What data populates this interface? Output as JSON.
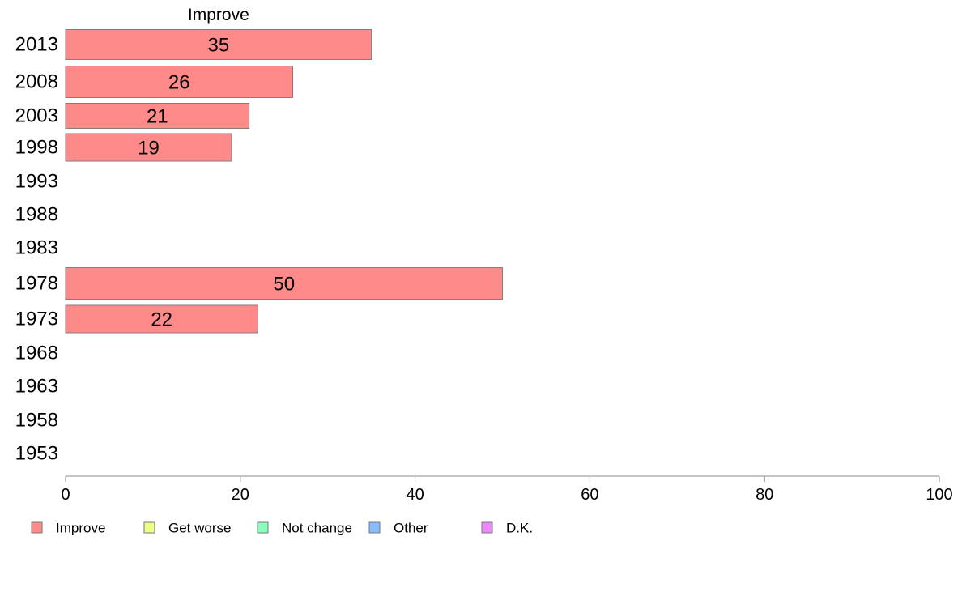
{
  "chart_data": {
    "type": "bar",
    "orientation": "horizontal",
    "title": "Improve",
    "categories": [
      "2013",
      "2008",
      "2003",
      "1998",
      "1993",
      "1988",
      "1983",
      "1978",
      "1973",
      "1968",
      "1963",
      "1958",
      "1953"
    ],
    "series": [
      {
        "name": "Improve",
        "color": "#ff8a8a",
        "values": [
          35,
          26,
          21,
          19,
          null,
          null,
          null,
          50,
          22,
          null,
          null,
          null,
          null
        ],
        "labels": [
          "35",
          "26",
          "21",
          "19",
          "",
          "",
          "",
          "50",
          "22",
          "",
          "",
          "",
          ""
        ]
      }
    ],
    "xlim": [
      0,
      100
    ],
    "xticks": [
      "0",
      "20",
      "40",
      "60",
      "80",
      "100"
    ],
    "grid": false,
    "legend": {
      "placement": "bottom-left",
      "entries": [
        {
          "name": "Improve",
          "color": "#ff8a8a"
        },
        {
          "name": "Get worse",
          "color": "#eeff88"
        },
        {
          "name": "Not change",
          "color": "#88ffbb"
        },
        {
          "name": "Other",
          "color": "#88bbff"
        },
        {
          "name": "D.K.",
          "color": "#ee88ff"
        }
      ]
    }
  }
}
